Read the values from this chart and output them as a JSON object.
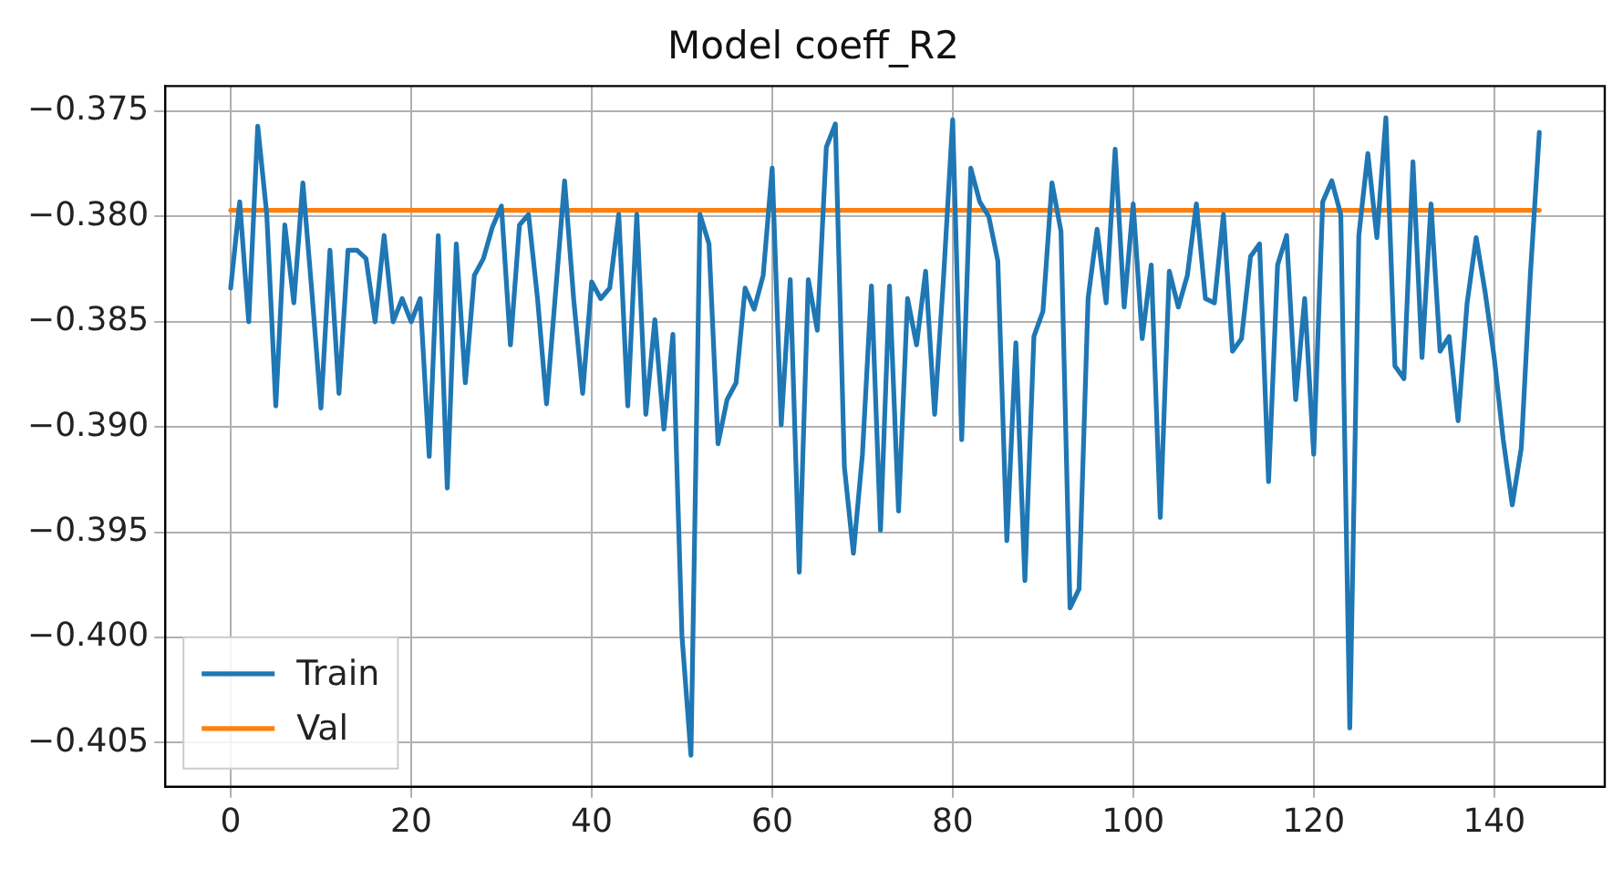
{
  "chart_data": {
    "type": "line",
    "title": "Model coeff_R2",
    "x": [
      0,
      1,
      2,
      3,
      4,
      5,
      6,
      7,
      8,
      9,
      10,
      11,
      12,
      13,
      14,
      15,
      16,
      17,
      18,
      19,
      20,
      21,
      22,
      23,
      24,
      25,
      26,
      27,
      28,
      29,
      30,
      31,
      32,
      33,
      34,
      35,
      36,
      37,
      38,
      39,
      40,
      41,
      42,
      43,
      44,
      45,
      46,
      47,
      48,
      49,
      50,
      51,
      52,
      53,
      54,
      55,
      56,
      57,
      58,
      59,
      60,
      61,
      62,
      63,
      64,
      65,
      66,
      67,
      68,
      69,
      70,
      71,
      72,
      73,
      74,
      75,
      76,
      77,
      78,
      79,
      80,
      81,
      82,
      83,
      84,
      85,
      86,
      87,
      88,
      89,
      90,
      91,
      92,
      93,
      94,
      95,
      96,
      97,
      98,
      99,
      100,
      101,
      102,
      103,
      104,
      105,
      106,
      107,
      108,
      109,
      110,
      111,
      112,
      113,
      114,
      115,
      116,
      117,
      118,
      119,
      120,
      121,
      122,
      123,
      124,
      125,
      126,
      127,
      128,
      129,
      130,
      131,
      132,
      133,
      134,
      135,
      136,
      137,
      138,
      139,
      140,
      141,
      142,
      143,
      144,
      145
    ],
    "series": [
      {
        "name": "Train",
        "color": "#1f77b4",
        "values": [
          -0.3834,
          -0.3793,
          -0.385,
          -0.3757,
          -0.3799,
          -0.389,
          -0.3804,
          -0.3841,
          -0.3784,
          -0.3836,
          -0.3891,
          -0.3816,
          -0.3884,
          -0.3816,
          -0.3816,
          -0.382,
          -0.385,
          -0.3809,
          -0.385,
          -0.3839,
          -0.385,
          -0.3839,
          -0.3914,
          -0.3809,
          -0.3929,
          -0.3813,
          -0.3879,
          -0.3828,
          -0.382,
          -0.3805,
          -0.3795,
          -0.3861,
          -0.3804,
          -0.3799,
          -0.3839,
          -0.3889,
          -0.3836,
          -0.3783,
          -0.3839,
          -0.3884,
          -0.3831,
          -0.3839,
          -0.3834,
          -0.3799,
          -0.389,
          -0.3799,
          -0.3894,
          -0.3849,
          -0.3901,
          -0.3856,
          -0.3999,
          -0.4056,
          -0.3799,
          -0.3813,
          -0.3908,
          -0.3887,
          -0.3879,
          -0.3834,
          -0.3844,
          -0.3828,
          -0.3777,
          -0.3899,
          -0.383,
          -0.3969,
          -0.383,
          -0.3854,
          -0.3767,
          -0.3756,
          -0.3919,
          -0.396,
          -0.3913,
          -0.3833,
          -0.3949,
          -0.3833,
          -0.394,
          -0.3839,
          -0.3861,
          -0.3826,
          -0.3894,
          -0.3828,
          -0.3754,
          -0.3906,
          -0.3777,
          -0.3793,
          -0.38,
          -0.3821,
          -0.3954,
          -0.386,
          -0.3973,
          -0.3857,
          -0.3845,
          -0.3784,
          -0.3807,
          -0.3986,
          -0.3977,
          -0.3839,
          -0.3806,
          -0.3841,
          -0.3768,
          -0.3843,
          -0.3794,
          -0.3858,
          -0.3823,
          -0.3943,
          -0.3826,
          -0.3843,
          -0.3828,
          -0.3794,
          -0.3839,
          -0.3841,
          -0.3799,
          -0.3864,
          -0.3858,
          -0.3819,
          -0.3813,
          -0.3926,
          -0.3823,
          -0.3809,
          -0.3887,
          -0.3839,
          -0.3913,
          -0.3793,
          -0.3783,
          -0.3799,
          -0.4043,
          -0.3809,
          -0.377,
          -0.381,
          -0.3753,
          -0.3871,
          -0.3877,
          -0.3774,
          -0.3867,
          -0.3794,
          -0.3864,
          -0.3857,
          -0.3897,
          -0.3841,
          -0.381,
          -0.3836,
          -0.3867,
          -0.3906,
          -0.3937,
          -0.391,
          -0.3828,
          -0.376
        ]
      },
      {
        "name": "Val",
        "color": "#ff7f0e",
        "x": [
          0,
          145
        ],
        "values": [
          -0.3797,
          -0.3797
        ]
      }
    ],
    "xlim": [
      -7.25,
      152.25
    ],
    "xticks": [
      0,
      20,
      40,
      60,
      80,
      100,
      120,
      140
    ],
    "ylim": [
      -0.4071,
      -0.3738
    ],
    "yticks": [
      {
        "value": -0.405,
        "label": "−0.405"
      },
      {
        "value": -0.4,
        "label": "−0.400"
      },
      {
        "value": -0.395,
        "label": "−0.395"
      },
      {
        "value": -0.39,
        "label": "−0.390"
      },
      {
        "value": -0.385,
        "label": "−0.385"
      },
      {
        "value": -0.38,
        "label": "−0.380"
      },
      {
        "value": -0.375,
        "label": "−0.375"
      }
    ],
    "grid": true,
    "legend": "bottom left"
  }
}
